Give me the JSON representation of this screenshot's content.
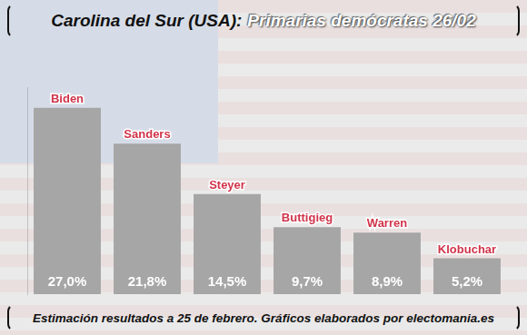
{
  "chart_data": {
    "type": "bar",
    "title": "Carolina del Sur (USA): Primarias demócratas 26/02",
    "annotations": [
      "Estimación resultados a 25 de febrero. Gráficos elaborados por electomania.es"
    ],
    "categories": [
      "Biden",
      "Sanders",
      "Steyer",
      "Buttigieg",
      "Warren",
      "Klobuchar"
    ],
    "values": [
      27.0,
      21.8,
      14.5,
      9.7,
      8.9,
      5.2
    ],
    "value_labels": [
      "27,0%",
      "21,8%",
      "14,5%",
      "9,7%",
      "8,9%",
      "5,2%"
    ],
    "color": "#a6a6a6",
    "ylim": [
      0,
      30
    ],
    "grid": false,
    "data_labels": true,
    "tick_labels": false
  }
}
